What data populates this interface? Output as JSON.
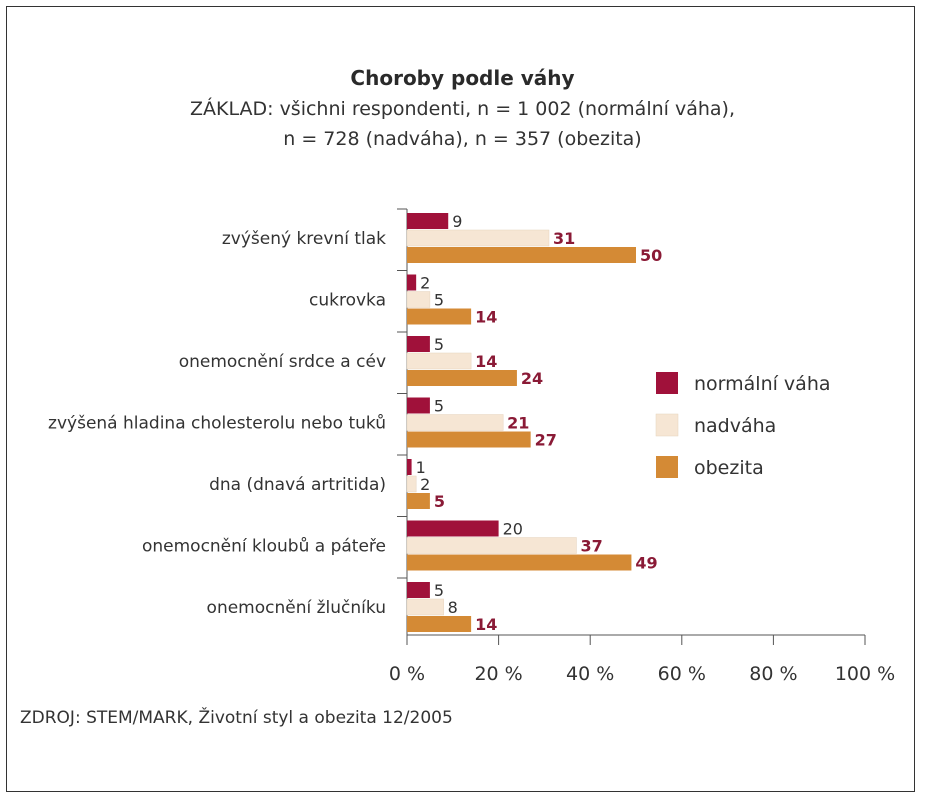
{
  "chart_data": {
    "type": "bar",
    "orientation": "horizontal",
    "title": "Choroby podle váhy",
    "subtitle_lines": [
      "ZÁKLAD: všichni respondenti, n = 1 002 (normální váha),",
      "n = 728 (nadváha), n = 357 (obezita)"
    ],
    "categories": [
      "zvýšený krevní tlak",
      "cukrovka",
      "onemocnění srdce a cév",
      "zvýšená hladina cholesterolu nebo tuků",
      "dna (dnavá artritida)",
      "onemocnění kloubů a páteře",
      "onemocnění žlučníku"
    ],
    "series": [
      {
        "name": "normální váha",
        "color": "#a0113a",
        "label_color": "#333333",
        "label_bold": false,
        "values": [
          9,
          2,
          5,
          5,
          1,
          20,
          5
        ]
      },
      {
        "name": "nadváha",
        "color": "#f6e6d4",
        "label_color": "#333333",
        "label_bold": false,
        "values": [
          31,
          5,
          14,
          21,
          2,
          37,
          8
        ]
      },
      {
        "name": "obezita",
        "color": "#d48a35",
        "label_color": "#8a1a36",
        "label_bold": true,
        "values": [
          50,
          14,
          24,
          27,
          5,
          49,
          14
        ]
      }
    ],
    "label_overrides": {
      "1": {
        "1": {
          "color": "#333333",
          "bold": false
        }
      },
      "4": {
        "1": {
          "color": "#333333",
          "bold": false
        }
      },
      "6": {
        "1": {
          "color": "#333333",
          "bold": false
        }
      }
    },
    "bold_nadvaha_rows": [
      0,
      2,
      3,
      5
    ],
    "xlim": [
      0,
      100
    ],
    "x_ticks": [
      "0 %",
      "20 %",
      "40 %",
      "60 %",
      "80 %",
      "100 %"
    ],
    "x_tick_values": [
      0,
      20,
      40,
      60,
      80,
      100
    ],
    "legend_position": "right",
    "grid": false
  },
  "source": "ZDROJ: STEM/MARK, Životní styl a obezita 12/2005"
}
